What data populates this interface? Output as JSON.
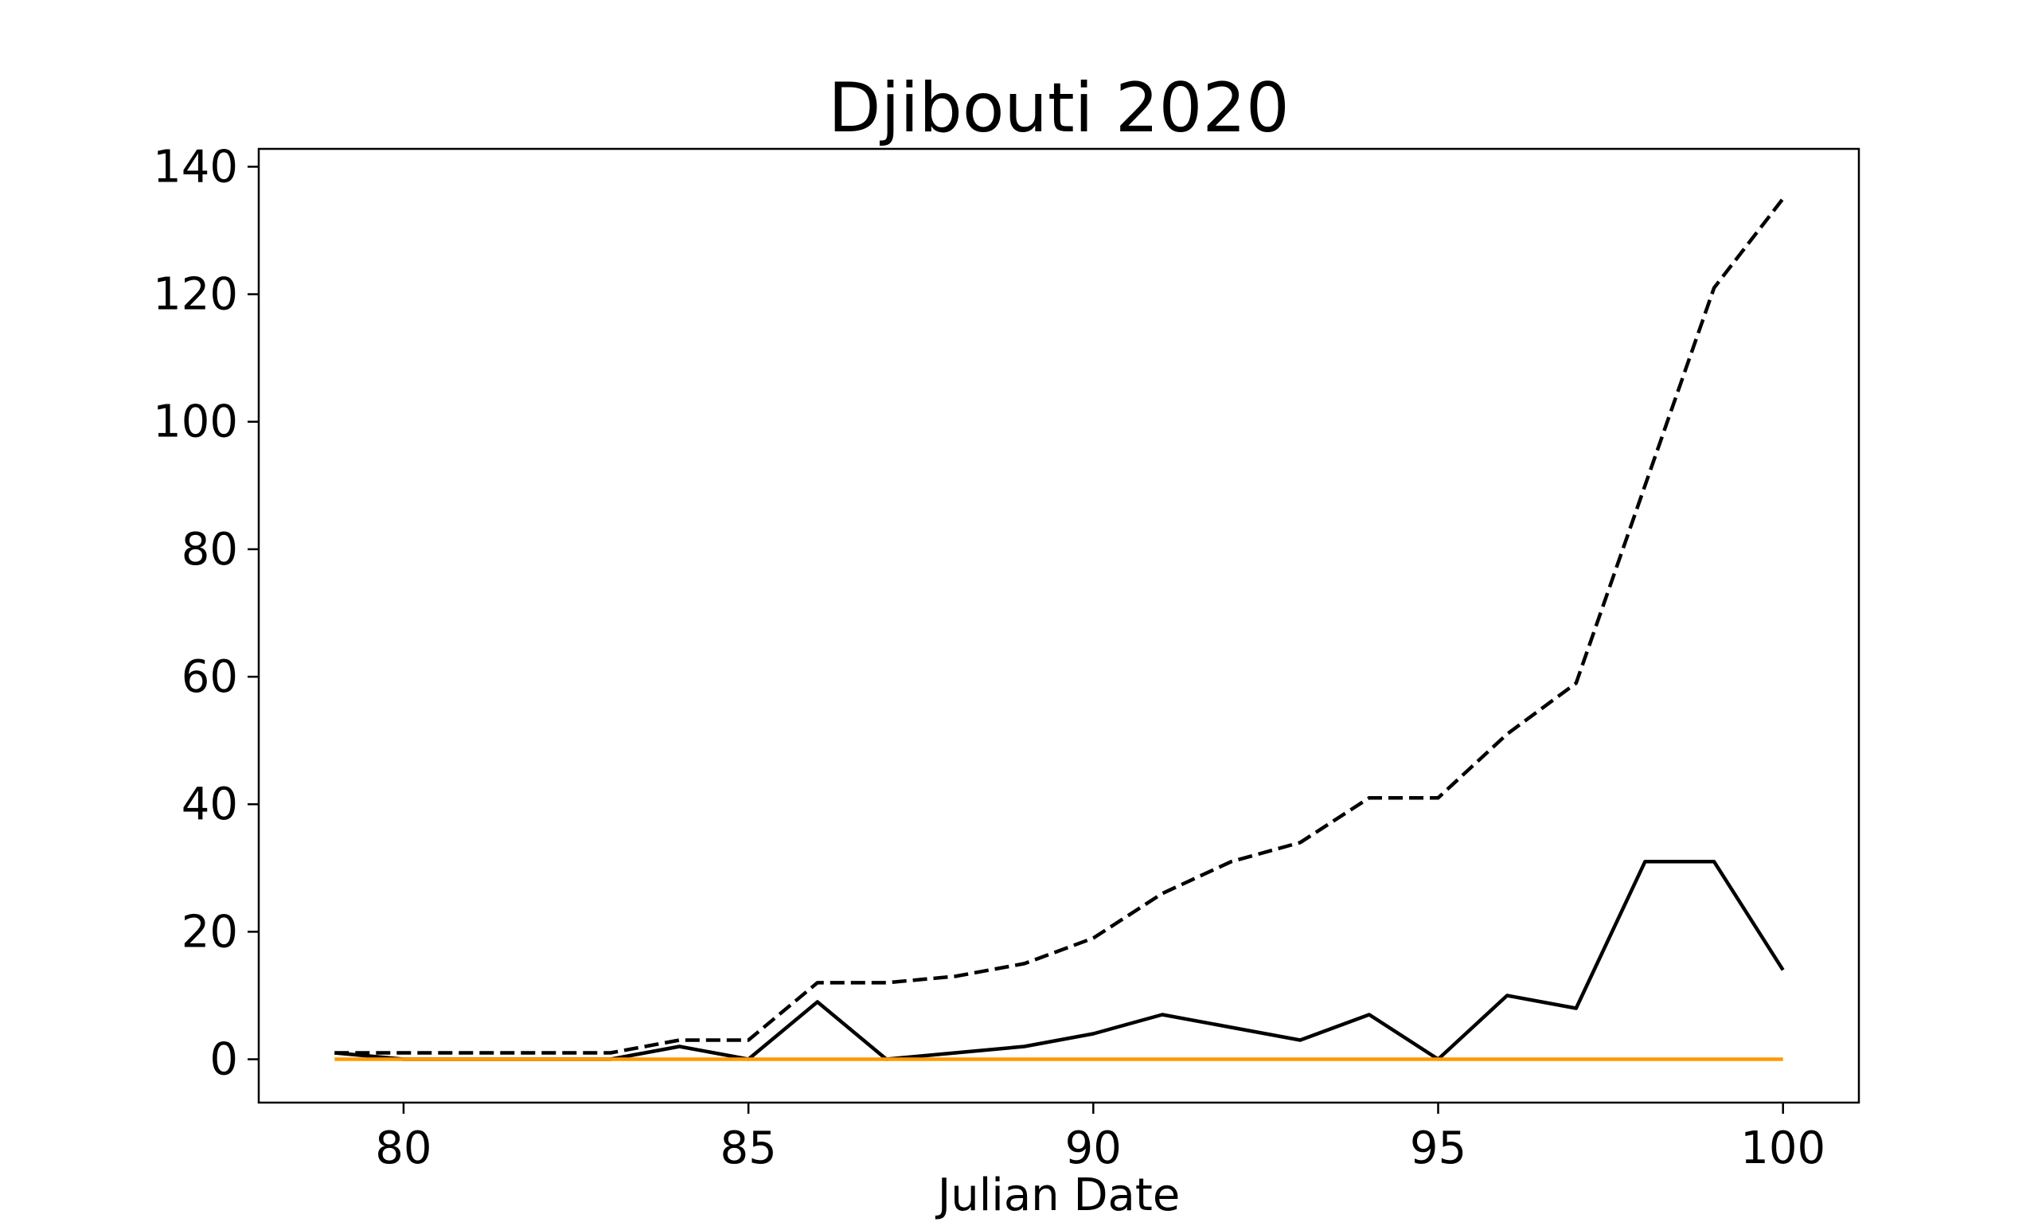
{
  "chart_data": {
    "type": "line",
    "title": "Djibouti 2020",
    "xlabel": "Julian Date",
    "ylabel": "",
    "xlim": [
      77.9,
      101.1
    ],
    "ylim": [
      -6.8,
      142.8
    ],
    "xticks": [
      80,
      85,
      90,
      95,
      100
    ],
    "yticks": [
      0,
      20,
      40,
      60,
      80,
      100,
      120,
      140
    ],
    "grid": false,
    "x": [
      79,
      80,
      81,
      82,
      83,
      84,
      85,
      86,
      87,
      88,
      89,
      90,
      91,
      92,
      93,
      94,
      95,
      96,
      97,
      98,
      99,
      100
    ],
    "series": [
      {
        "style": "dashed",
        "color": "#000000",
        "values": [
          1,
          1,
          1,
          1,
          1,
          3,
          3,
          12,
          12,
          13,
          15,
          19,
          26,
          31,
          34,
          41,
          41,
          51,
          59,
          90,
          121,
          135
        ]
      },
      {
        "style": "solid",
        "color": "#000000",
        "values": [
          1,
          0,
          0,
          0,
          0,
          2,
          0,
          9,
          0,
          1,
          2,
          4,
          7,
          5,
          3,
          7,
          0,
          10,
          8,
          31,
          31,
          14
        ]
      },
      {
        "style": "solid",
        "color": "#ff9900",
        "values": [
          0,
          0,
          0,
          0,
          0,
          0,
          0,
          0,
          0,
          0,
          0,
          0,
          0,
          0,
          0,
          0,
          0,
          0,
          0,
          0,
          0,
          0
        ]
      }
    ]
  }
}
